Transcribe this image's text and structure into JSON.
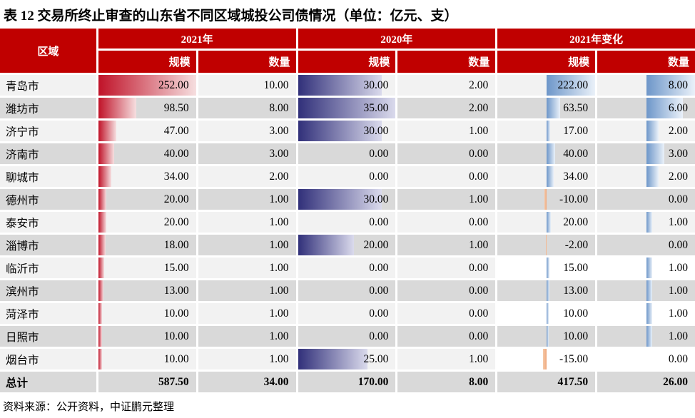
{
  "title": "表 12 交易所终止审查的山东省不同区域城投公司债情况（单位：亿元、支）",
  "source_note": "资料来源：公开资料，中证鹏元整理",
  "colors": {
    "header_bg": "#C00000",
    "row_light": "#F2F2F2",
    "row_dark": "#D9D9D9",
    "row_white": "#FFFFFF",
    "bar_red_start": "#C01228",
    "bar_red_end": "#F6DFE0",
    "bar_navy_start": "#31307A",
    "bar_navy_end": "#DADAEC",
    "bar_blue_start": "#6D96C9",
    "bar_blue_end": "#EAF1F9",
    "bar_neg_start": "#EFA97E",
    "bar_neg_end": "#F6C9A8",
    "title_color": "#000000",
    "text_color": "#000000"
  },
  "chart_data": {
    "type": "table",
    "note": "Excel-style data bars: 2021 scale red gradient (max 252), 2020 scale navy gradient (max 35), 2021-change columns use cell-midpoint axis bars (blue positive / orange negative; scale half-max 222, count half-max 8)",
    "header": {
      "region": "区域",
      "groups": [
        {
          "label": "2021年",
          "sub": [
            "规模",
            "数量"
          ]
        },
        {
          "label": "2020年",
          "sub": [
            "规模",
            "数量"
          ]
        },
        {
          "label": "2021年变化",
          "sub": [
            "规模",
            "数量"
          ]
        }
      ]
    },
    "rows": [
      {
        "region": "青岛市",
        "scale_2021": 252.0,
        "count_2021": 10,
        "scale_2020": 30,
        "count_2020": 2,
        "chg_scale": 222.0,
        "chg_count": 8,
        "white_change_cells": false
      },
      {
        "region": "潍坊市",
        "scale_2021": 98.5,
        "count_2021": 8,
        "scale_2020": 35,
        "count_2020": 2,
        "chg_scale": 63.5,
        "chg_count": 6,
        "white_change_cells": false
      },
      {
        "region": "济宁市",
        "scale_2021": 47.0,
        "count_2021": 3,
        "scale_2020": 30,
        "count_2020": 1,
        "chg_scale": 17.0,
        "chg_count": 2,
        "white_change_cells": false
      },
      {
        "region": "济南市",
        "scale_2021": 40.0,
        "count_2021": 3,
        "scale_2020": 0,
        "count_2020": 0,
        "chg_scale": 40.0,
        "chg_count": 3,
        "white_change_cells": false
      },
      {
        "region": "聊城市",
        "scale_2021": 34.0,
        "count_2021": 2,
        "scale_2020": 0,
        "count_2020": 0,
        "chg_scale": 34.0,
        "chg_count": 2,
        "white_change_cells": false
      },
      {
        "region": "德州市",
        "scale_2021": 20.0,
        "count_2021": 1,
        "scale_2020": 30,
        "count_2020": 1,
        "chg_scale": -10.0,
        "chg_count": 0,
        "white_change_cells": false
      },
      {
        "region": "泰安市",
        "scale_2021": 20.0,
        "count_2021": 1,
        "scale_2020": 0,
        "count_2020": 0,
        "chg_scale": 20.0,
        "chg_count": 1,
        "white_change_cells": false
      },
      {
        "region": "淄博市",
        "scale_2021": 18.0,
        "count_2021": 1,
        "scale_2020": 20,
        "count_2020": 1,
        "chg_scale": -2.0,
        "chg_count": 0,
        "white_change_cells": false
      },
      {
        "region": "临沂市",
        "scale_2021": 15.0,
        "count_2021": 1,
        "scale_2020": 0,
        "count_2020": 0,
        "chg_scale": 15.0,
        "chg_count": 1,
        "white_change_cells": true
      },
      {
        "region": "滨州市",
        "scale_2021": 13.0,
        "count_2021": 1,
        "scale_2020": 0,
        "count_2020": 0,
        "chg_scale": 13.0,
        "chg_count": 1,
        "white_change_cells": false
      },
      {
        "region": "菏泽市",
        "scale_2021": 10.0,
        "count_2021": 1,
        "scale_2020": 0,
        "count_2020": 0,
        "chg_scale": 10.0,
        "chg_count": 1,
        "white_change_cells": true
      },
      {
        "region": "日照市",
        "scale_2021": 10.0,
        "count_2021": 1,
        "scale_2020": 0,
        "count_2020": 0,
        "chg_scale": 10.0,
        "chg_count": 1,
        "white_change_cells": false
      },
      {
        "region": "烟台市",
        "scale_2021": 10.0,
        "count_2021": 1,
        "scale_2020": 25,
        "count_2020": 1,
        "chg_scale": -15.0,
        "chg_count": 0,
        "white_change_cells": true
      }
    ],
    "total": {
      "region": "总计",
      "scale_2021": 587.5,
      "count_2021": 34,
      "scale_2020": 170,
      "count_2020": 8,
      "chg_scale": 417.5,
      "chg_count": 26
    },
    "bar_axis": {
      "scale_2021_max": 252,
      "scale_2020_max": 35,
      "chg_scale_halfmax": 222,
      "chg_count_halfmax": 8
    }
  }
}
